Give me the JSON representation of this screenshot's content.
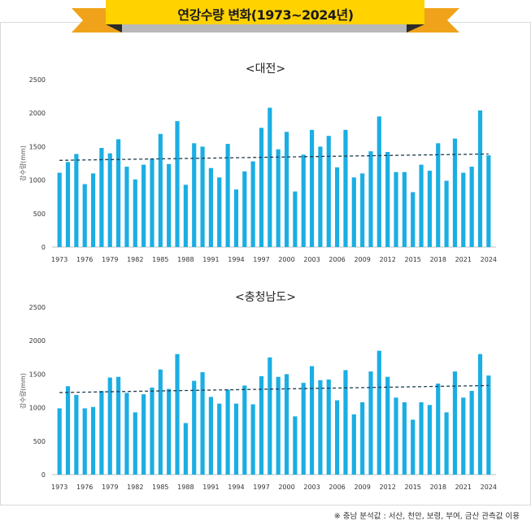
{
  "header": {
    "title": "연강수량 변화(1973~2024년)"
  },
  "colors": {
    "bar": "#1aaee3",
    "trend": "#1f3b4d",
    "banner": "#ffd200",
    "ribbon": "#f0a31a",
    "ribbon_dark": "#2b2b2b"
  },
  "footnote": "※ 충남 분석값 : 서산, 천안, 보령, 부여, 금산 관측값 이용",
  "chart_data": [
    {
      "type": "bar",
      "title": "<대전>",
      "ylabel": "강수량(mm)",
      "xlabel": "",
      "ylim": [
        0,
        2500
      ],
      "yticks": [
        "0",
        "500",
        "1000",
        "1500",
        "2000",
        "2500"
      ],
      "xtick_labels": [
        "1973",
        "1976",
        "1979",
        "1982",
        "1985",
        "1988",
        "1991",
        "1994",
        "1997",
        "2000",
        "2003",
        "2006",
        "2009",
        "2012",
        "2015",
        "2018",
        "2021",
        "2024"
      ],
      "categories": [
        1973,
        1974,
        1975,
        1976,
        1977,
        1978,
        1979,
        1980,
        1981,
        1982,
        1983,
        1984,
        1985,
        1986,
        1987,
        1988,
        1989,
        1990,
        1991,
        1992,
        1993,
        1994,
        1995,
        1996,
        1997,
        1998,
        1999,
        2000,
        2001,
        2002,
        2003,
        2004,
        2005,
        2006,
        2007,
        2008,
        2009,
        2010,
        2011,
        2012,
        2013,
        2014,
        2015,
        2016,
        2017,
        2018,
        2019,
        2020,
        2021,
        2022,
        2023,
        2024
      ],
      "values": [
        1110,
        1270,
        1390,
        940,
        1100,
        1480,
        1400,
        1610,
        1200,
        1010,
        1230,
        1320,
        1690,
        1240,
        1880,
        930,
        1550,
        1500,
        1180,
        1040,
        1540,
        860,
        1130,
        1280,
        1780,
        2080,
        1460,
        1720,
        830,
        1380,
        1750,
        1500,
        1660,
        1190,
        1750,
        1040,
        1100,
        1430,
        1950,
        1420,
        1120,
        1120,
        820,
        1230,
        1140,
        1550,
        990,
        1620,
        1110,
        1200,
        2040,
        1370
      ],
      "trend": [
        1295,
        1390
      ],
      "grid": false,
      "legend": "none"
    },
    {
      "type": "bar",
      "title": "<충청남도>",
      "ylabel": "강수량(mm)",
      "xlabel": "",
      "ylim": [
        0,
        2500
      ],
      "yticks": [
        "0",
        "500",
        "1000",
        "1500",
        "2000",
        "2500"
      ],
      "xtick_labels": [
        "1973",
        "1976",
        "1979",
        "1982",
        "1985",
        "1988",
        "1991",
        "1994",
        "1997",
        "2000",
        "2003",
        "2006",
        "2009",
        "2012",
        "2015",
        "2018",
        "2021",
        "2024"
      ],
      "categories": [
        1973,
        1974,
        1975,
        1976,
        1977,
        1978,
        1979,
        1980,
        1981,
        1982,
        1983,
        1984,
        1985,
        1986,
        1987,
        1988,
        1989,
        1990,
        1991,
        1992,
        1993,
        1994,
        1995,
        1996,
        1997,
        1998,
        1999,
        2000,
        2001,
        2002,
        2003,
        2004,
        2005,
        2006,
        2007,
        2008,
        2009,
        2010,
        2011,
        2012,
        2013,
        2014,
        2015,
        2016,
        2017,
        2018,
        2019,
        2020,
        2021,
        2022,
        2023,
        2024
      ],
      "values": [
        990,
        1320,
        1190,
        990,
        1010,
        1250,
        1450,
        1460,
        1220,
        930,
        1200,
        1300,
        1570,
        1280,
        1800,
        770,
        1400,
        1530,
        1160,
        1060,
        1270,
        1060,
        1330,
        1050,
        1470,
        1750,
        1460,
        1500,
        870,
        1370,
        1620,
        1410,
        1420,
        1110,
        1560,
        900,
        1080,
        1540,
        1850,
        1460,
        1150,
        1080,
        820,
        1080,
        1040,
        1360,
        930,
        1540,
        1150,
        1250,
        1800,
        1480
      ],
      "trend": [
        1225,
        1330
      ],
      "grid": false,
      "legend": "none"
    }
  ]
}
